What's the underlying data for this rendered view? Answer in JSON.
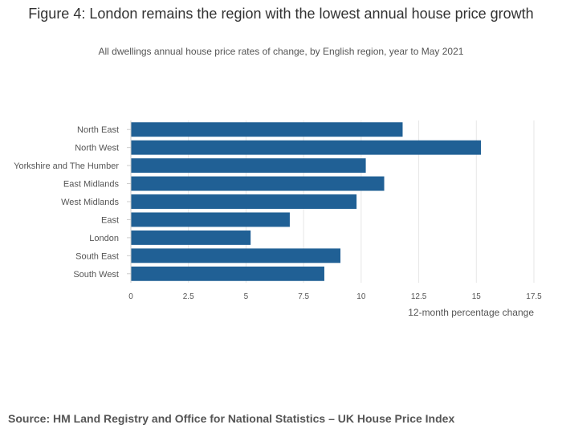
{
  "header": {
    "title": "Figure 4: London remains the region with the lowest annual house price growth",
    "subtitle": "All dwellings annual house price rates of change, by English region, year to May 2021"
  },
  "footer": {
    "source": "Source: HM Land Registry and Office for National Statistics – UK House Price Index"
  },
  "colors": {
    "bar": "#206095",
    "grid": "#e6e6e6",
    "axis": "#cccccc",
    "tick_text": "#555555"
  },
  "chart_data": {
    "type": "bar",
    "orientation": "horizontal",
    "title": "Figure 4: London remains the region with the lowest annual house price growth",
    "subtitle": "All dwellings annual house price rates of change, by English region, year to May 2021",
    "categories": [
      "North East",
      "North West",
      "Yorkshire and The Humber",
      "East Midlands",
      "West Midlands",
      "East",
      "London",
      "South East",
      "South West"
    ],
    "values": [
      11.8,
      15.2,
      10.2,
      11.0,
      9.8,
      6.9,
      5.2,
      9.1,
      8.4
    ],
    "xlabel": "12-month percentage change",
    "ylabel": "",
    "xlim": [
      0,
      17.5
    ],
    "xticks": [
      0,
      2.5,
      5,
      7.5,
      10,
      12.5,
      15,
      17.5
    ],
    "xtick_labels": [
      "0",
      "2.5",
      "5",
      "7.5",
      "10",
      "12.5",
      "15",
      "17.5"
    ],
    "grid": true,
    "legend": "none"
  }
}
